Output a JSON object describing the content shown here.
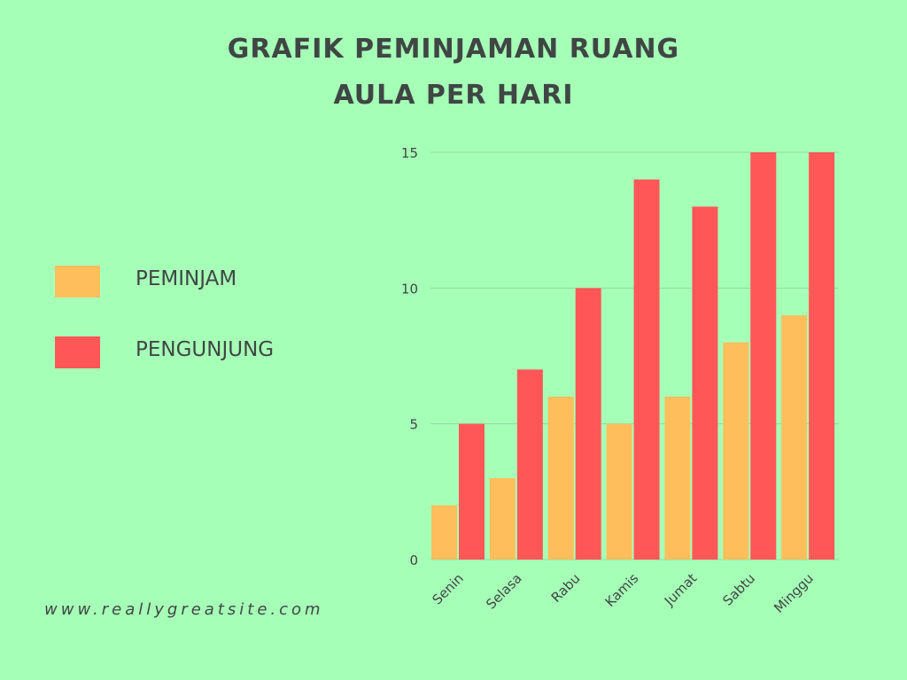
{
  "colors": {
    "background": "#a6ffb7",
    "series_1": "#ffbe5c",
    "series_2": "#ff5757",
    "text": "#3f4644",
    "grid": "#8fdca0"
  },
  "title": {
    "line1": "GRAFIK PEMINJAMAN RUANG",
    "line2": "AULA PER HARI"
  },
  "legend": [
    {
      "label": "PEMINJAM",
      "color": "#ffbe5c"
    },
    {
      "label": "PENGUNJUNG",
      "color": "#ff5757"
    }
  ],
  "website": "www.reallygreatsite.com",
  "chart_data": {
    "type": "bar",
    "categories": [
      "Senin",
      "Selasa",
      "Rabu",
      "Kamis",
      "Jumat",
      "Sabtu",
      "Minggu"
    ],
    "series": [
      {
        "name": "PEMINJAM",
        "values": [
          2,
          3,
          6,
          5,
          6,
          8,
          9
        ]
      },
      {
        "name": "PENGUNJUNG",
        "values": [
          5,
          7,
          10,
          14,
          13,
          15,
          15
        ]
      }
    ],
    "yticks": [
      0,
      5,
      10,
      15
    ],
    "ylim": [
      0,
      15
    ],
    "grid": true,
    "legend_position": "left"
  }
}
